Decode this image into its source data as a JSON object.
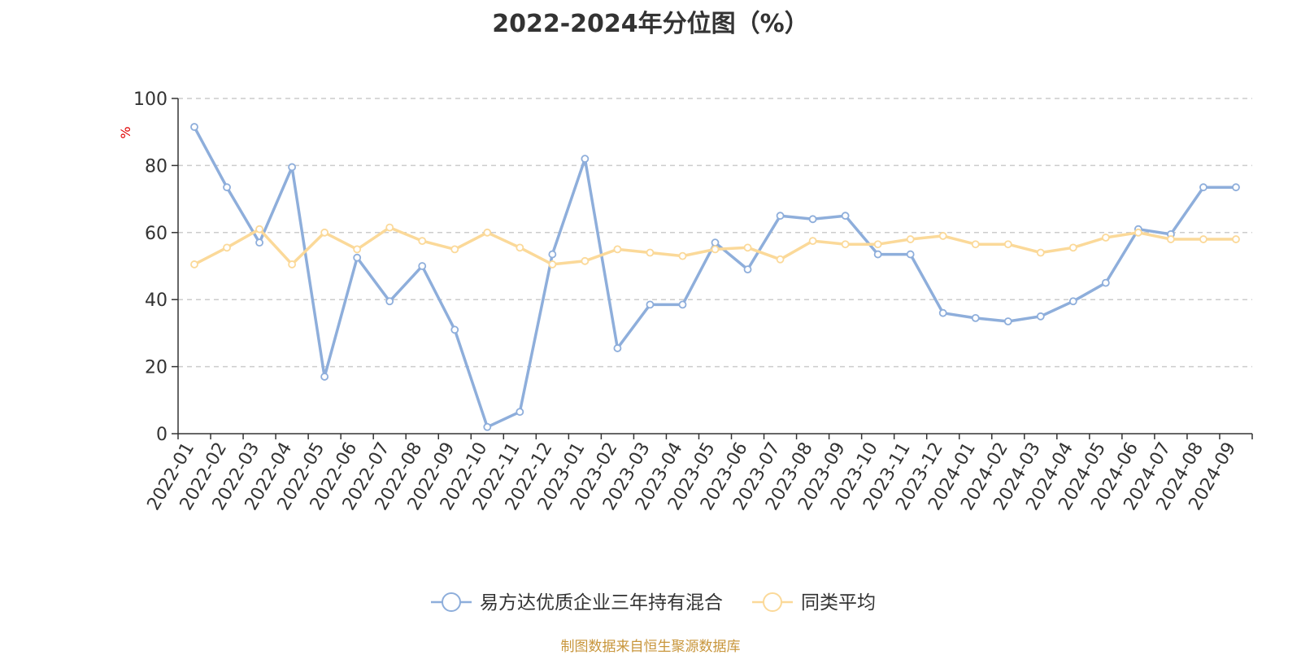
{
  "chart_data": {
    "type": "line",
    "title": "2022-2024年分位图（%）",
    "ylabel": "%",
    "xlabel": "",
    "ylim": [
      0,
      100
    ],
    "yticks": [
      0,
      20,
      40,
      60,
      80,
      100
    ],
    "grid": true,
    "legend_position": "bottom",
    "categories": [
      "2022-01",
      "2022-02",
      "2022-03",
      "2022-04",
      "2022-05",
      "2022-06",
      "2022-07",
      "2022-08",
      "2022-09",
      "2022-10",
      "2022-11",
      "2022-12",
      "2023-01",
      "2023-02",
      "2023-03",
      "2023-04",
      "2023-05",
      "2023-06",
      "2023-07",
      "2023-08",
      "2023-09",
      "2023-10",
      "2023-11",
      "2023-12",
      "2024-01",
      "2024-02",
      "2024-03",
      "2024-04",
      "2024-05",
      "2024-06",
      "2024-07",
      "2024-08",
      "2024-09"
    ],
    "series": [
      {
        "name": "易方达优质企业三年持有混合",
        "color": "#8eaedb",
        "values": [
          91.5,
          73.5,
          57.0,
          79.5,
          17.0,
          52.5,
          39.5,
          50.0,
          31.0,
          2.0,
          6.5,
          53.5,
          82.0,
          25.5,
          38.5,
          38.5,
          57.0,
          49.0,
          65.0,
          64.0,
          65.0,
          53.5,
          53.5,
          36.0,
          34.5,
          33.5,
          35.0,
          39.5,
          45.0,
          61.0,
          59.5,
          73.5,
          73.5
        ]
      },
      {
        "name": "同类平均",
        "color": "#fbd999",
        "values": [
          50.5,
          55.5,
          61.0,
          50.5,
          60.0,
          55.0,
          61.5,
          57.5,
          55.0,
          60.0,
          55.5,
          50.5,
          51.5,
          55.0,
          54.0,
          53.0,
          55.0,
          55.5,
          52.0,
          57.5,
          56.5,
          56.5,
          58.0,
          59.0,
          56.5,
          56.5,
          54.0,
          55.5,
          58.5,
          60.0,
          58.0,
          58.0,
          58.0
        ]
      }
    ]
  },
  "footer": {
    "source": "制图数据来自恒生聚源数据库"
  }
}
